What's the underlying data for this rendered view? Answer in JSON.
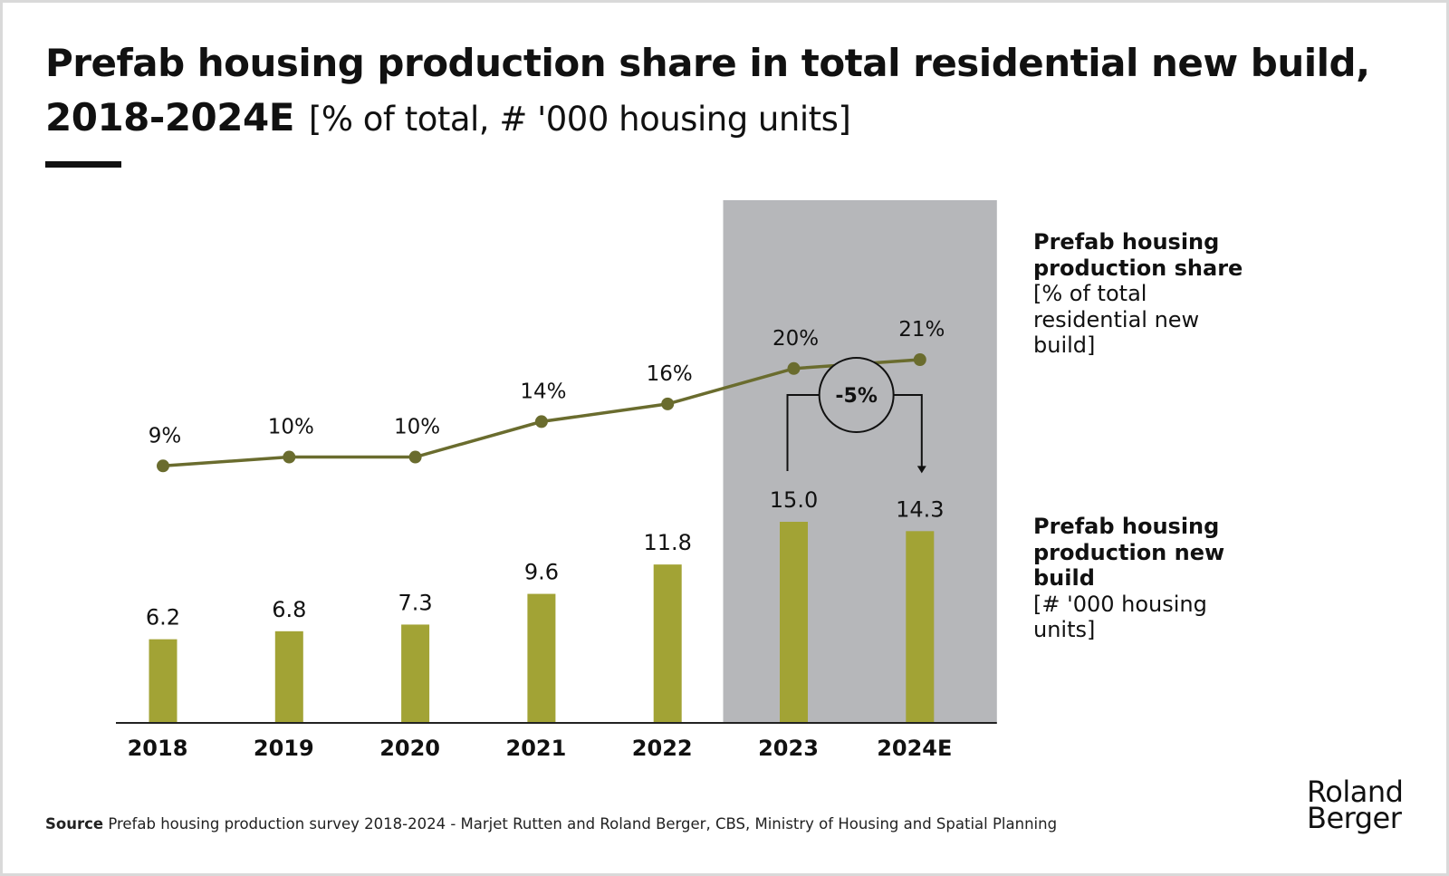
{
  "header": {
    "title": "Prefab housing production share in total residential new build, 2018-2024E",
    "unit": "[% of total, # '000 housing units]"
  },
  "legend": {
    "line_title": "Prefab housing production share",
    "line_unit": "[% of total residential new build]",
    "bar_title": "Prefab housing production new build",
    "bar_unit": "[# '000 housing units]"
  },
  "annotation": {
    "change_label": "-5%",
    "from": "2023",
    "to": "2024E"
  },
  "footer": {
    "source_label": "Source",
    "source_text": "Prefab housing production survey 2018-2024 - Marjet Rutten and Roland Berger, CBS, Ministry of Housing and Spatial Planning",
    "logo_line1": "Roland",
    "logo_line2": "Berger"
  },
  "colors": {
    "bar": "#a2a335",
    "line": "#6a6c2e",
    "highlight_band": "#b6b7ba",
    "axis": "#222222",
    "text": "#111111"
  },
  "chart_data": {
    "type": "bar",
    "categories": [
      "2018",
      "2019",
      "2020",
      "2021",
      "2022",
      "2023",
      "2024E"
    ],
    "series": [
      {
        "name": "Prefab housing production new build",
        "type": "bar",
        "values": [
          6.2,
          6.8,
          7.3,
          9.6,
          11.8,
          15.0,
          14.3
        ],
        "labels": [
          "6.2",
          "6.8",
          "7.3",
          "9.6",
          "11.8",
          "15.0",
          "14.3"
        ]
      },
      {
        "name": "Prefab housing production share",
        "type": "line",
        "values": [
          9,
          10,
          10,
          14,
          16,
          20,
          21
        ],
        "labels": [
          "9%",
          "10%",
          "10%",
          "14%",
          "16%",
          "20%",
          "21%"
        ]
      }
    ],
    "highlight_categories": [
      "2023",
      "2024E"
    ],
    "grid": false
  }
}
